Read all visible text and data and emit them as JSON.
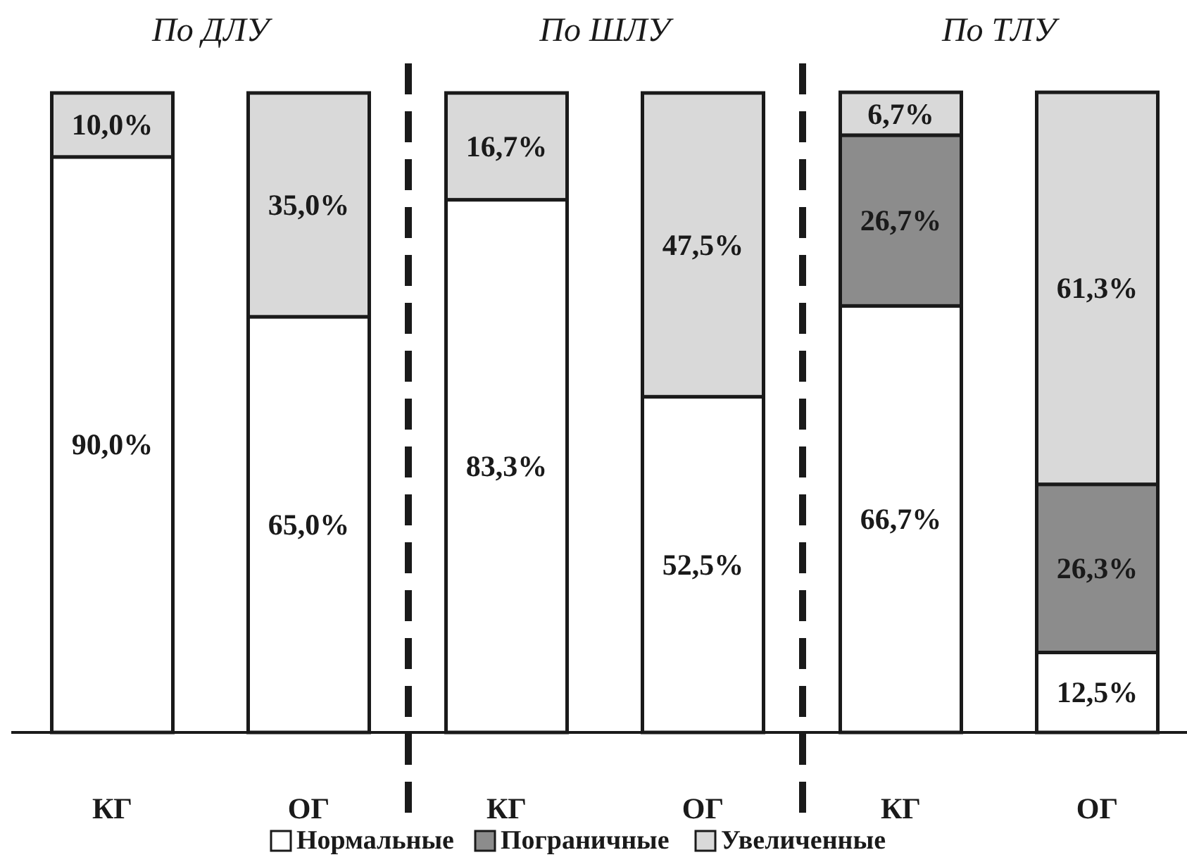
{
  "chart_data": [
    {
      "type": "bar",
      "title": "По ДЛУ",
      "categories": [
        "КГ",
        "ОГ"
      ],
      "stacked": true,
      "ylim": [
        0,
        100
      ],
      "tick_labels": "x",
      "series": [
        {
          "color": "#ffffff",
          "values": [
            90.0,
            65.0
          ],
          "value_labels": [
            "90,0%",
            "65,0%"
          ]
        },
        {
          "color": "#d9d9d9",
          "values": [
            10.0,
            35.0
          ],
          "value_labels": [
            "10,0%",
            "35,0%"
          ]
        }
      ]
    },
    {
      "type": "bar",
      "title": "По ШЛУ",
      "categories": [
        "КГ",
        "ОГ"
      ],
      "stacked": true,
      "ylim": [
        0,
        100
      ],
      "tick_labels": "x",
      "series": [
        {
          "color": "#ffffff",
          "values": [
            83.3,
            52.5
          ],
          "value_labels": [
            "83,3%",
            "52,5%"
          ]
        },
        {
          "color": "#d9d9d9",
          "values": [
            16.7,
            47.5
          ],
          "value_labels": [
            "16,7%",
            "47,5%"
          ]
        }
      ]
    },
    {
      "type": "bar",
      "title": "По ТЛУ",
      "categories": [
        "КГ",
        "ОГ"
      ],
      "stacked": true,
      "ylim": [
        0,
        100
      ],
      "tick_labels": "x",
      "legend": "bottom",
      "series": [
        {
          "name": "Нормальные",
          "color": "#ffffff",
          "values": [
            66.7,
            12.5
          ],
          "value_labels": [
            "66,7%",
            "12,5%"
          ]
        },
        {
          "name": "Пограничные",
          "color": "#8c8c8c",
          "values": [
            26.7,
            26.3
          ],
          "value_labels": [
            "26,7%",
            "26,3%"
          ]
        },
        {
          "name": "Увеличенные",
          "color": "#d9d9d9",
          "values": [
            6.7,
            61.3
          ],
          "value_labels": [
            "6,7%",
            "61,3%"
          ]
        }
      ]
    }
  ]
}
